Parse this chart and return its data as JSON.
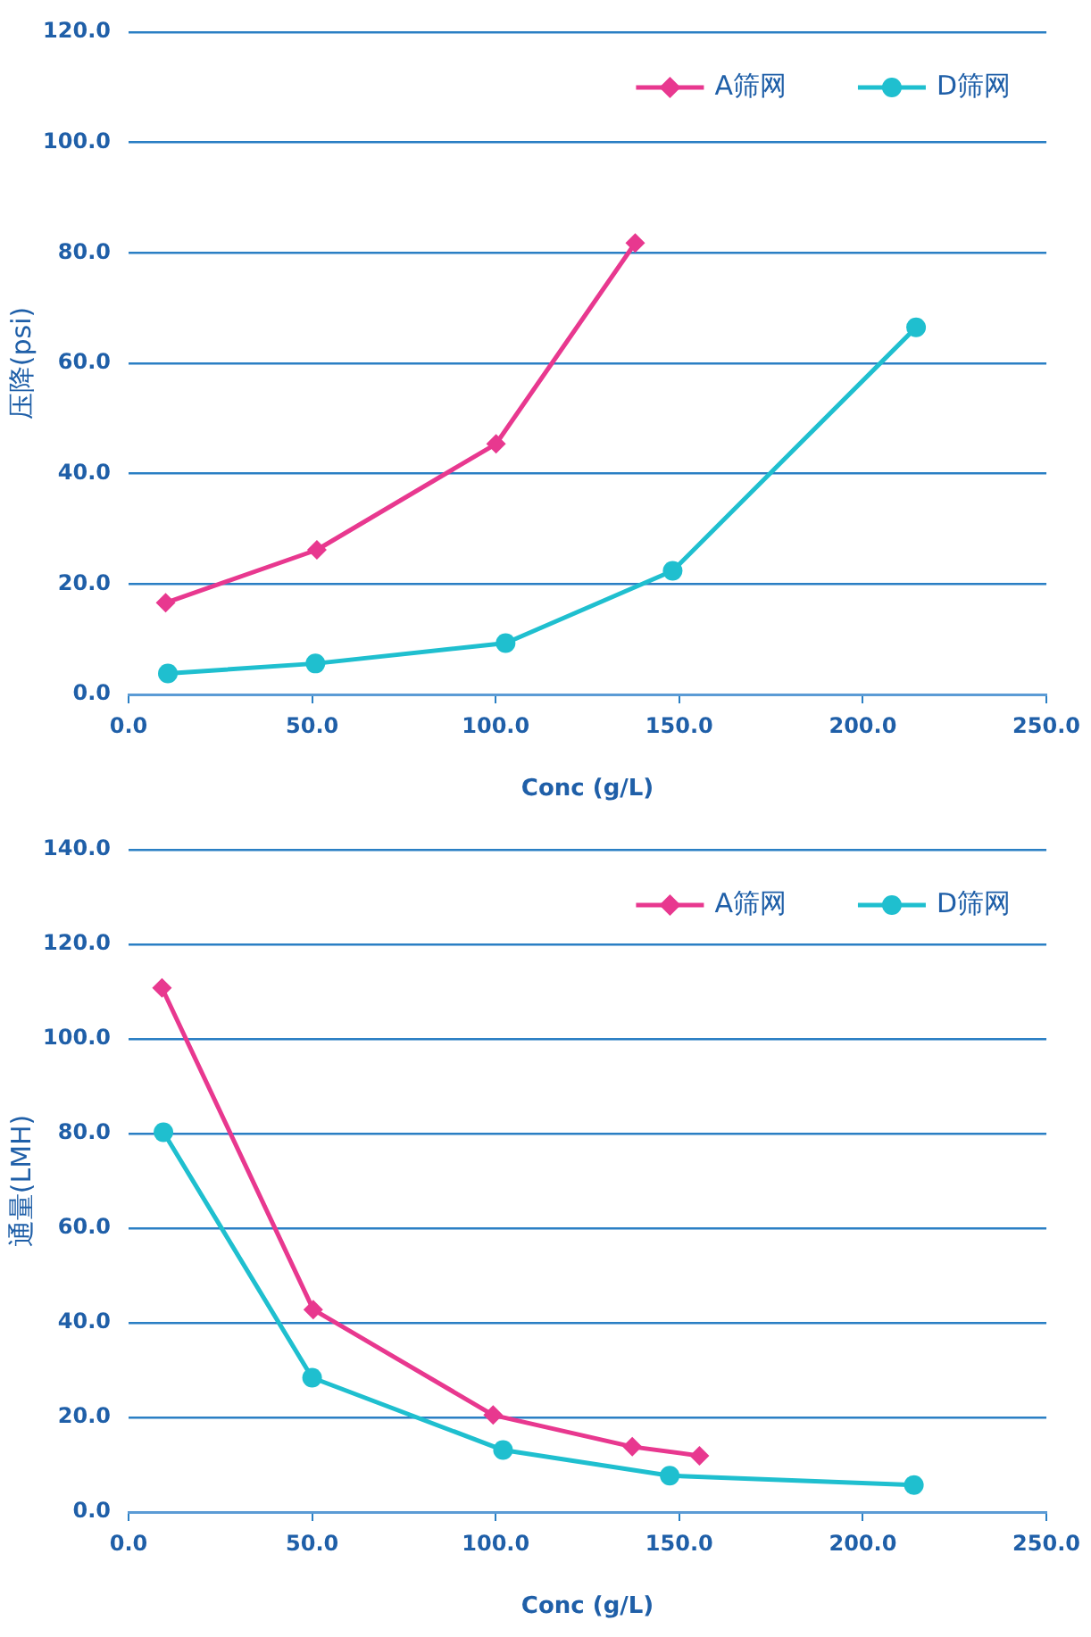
{
  "chart_data": [
    {
      "type": "line",
      "xlabel": "Conc (g/L)",
      "ylabel": "压降(psi)",
      "xlim": [
        0,
        250
      ],
      "xticks": [
        {
          "value": 0,
          "label": "0.0"
        },
        {
          "value": 50,
          "label": "50.0"
        },
        {
          "value": 100,
          "label": "100.0"
        },
        {
          "value": 150,
          "label": "150.0"
        },
        {
          "value": 200,
          "label": "200.0"
        },
        {
          "value": 250,
          "label": "250.0"
        }
      ],
      "ylim": [
        0,
        120
      ],
      "yticks": [
        {
          "value": 0,
          "label": "0.0"
        },
        {
          "value": 20,
          "label": "20.0"
        },
        {
          "value": 40,
          "label": "40.0"
        },
        {
          "value": 60,
          "label": "60.0"
        },
        {
          "value": 80,
          "label": "80.0"
        },
        {
          "value": 100,
          "label": "100.0"
        },
        {
          "value": 120,
          "label": "120.0"
        }
      ],
      "grid": "y",
      "legend": "top right",
      "series": [
        {
          "name": "A筛网",
          "color": "#e8388f",
          "marker": "diamond",
          "x": [
            10.1,
            51.3,
            100.1,
            138.0
          ],
          "values": [
            16.6,
            26.2,
            45.4,
            81.8
          ]
        },
        {
          "name": "D筛网",
          "color": "#1fbfcf",
          "marker": "circle",
          "x": [
            10.7,
            50.9,
            102.7,
            148.2,
            214.5
          ],
          "values": [
            3.8,
            5.6,
            9.3,
            22.4,
            66.5
          ]
        }
      ]
    },
    {
      "type": "line",
      "xlabel": "Conc (g/L)",
      "ylabel": "通量(LMH)",
      "xlim": [
        0,
        250
      ],
      "xticks": [
        {
          "value": 0,
          "label": "0.0"
        },
        {
          "value": 50,
          "label": "50.0"
        },
        {
          "value": 100,
          "label": "100.0"
        },
        {
          "value": 150,
          "label": "150.0"
        },
        {
          "value": 200,
          "label": "200.0"
        },
        {
          "value": 250,
          "label": "250.0"
        }
      ],
      "ylim": [
        0,
        140
      ],
      "yticks": [
        {
          "value": 0,
          "label": "0.0"
        },
        {
          "value": 20,
          "label": "20.0"
        },
        {
          "value": 40,
          "label": "40.0"
        },
        {
          "value": 60,
          "label": "60.0"
        },
        {
          "value": 80,
          "label": "80.0"
        },
        {
          "value": 100,
          "label": "100.0"
        },
        {
          "value": 120,
          "label": "120.0"
        },
        {
          "value": 140,
          "label": "140.0"
        }
      ],
      "grid": "y",
      "legend": "top right",
      "series": [
        {
          "name": "A筛网",
          "color": "#e8388f",
          "marker": "diamond",
          "x": [
            9.1,
            50.3,
            99.3,
            137.2,
            155.5
          ],
          "values": [
            110.8,
            42.8,
            20.5,
            13.8,
            11.9
          ]
        },
        {
          "name": "D筛网",
          "color": "#1fbfcf",
          "marker": "circle",
          "x": [
            9.5,
            50.0,
            102.0,
            147.4,
            213.9
          ],
          "values": [
            80.3,
            28.4,
            13.1,
            7.7,
            5.7
          ]
        }
      ]
    }
  ]
}
